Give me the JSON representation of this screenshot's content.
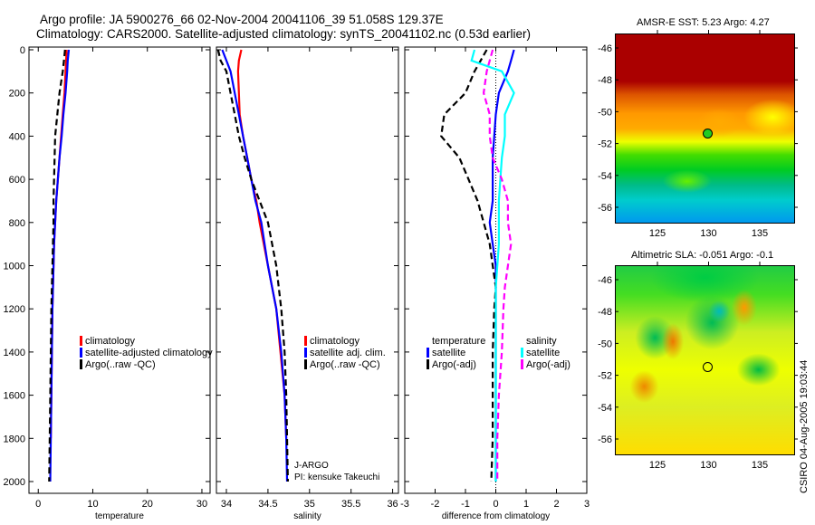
{
  "header": {
    "line1": "Argo profile: JA 5900276_66 02-Nov-2004 20041106_39 51.058S 129.37E",
    "line2": "Climatology: CARS2000. Satellite-adjusted climatology: synTS_20041102.nc (0.53d earlier)"
  },
  "colors": {
    "climatology": "#ff0000",
    "satellite": "#0000ff",
    "argo": "#000000",
    "sal_sat": "#00ffff",
    "sal_argo": "#ff00ff"
  },
  "chart_data": [
    {
      "type": "line",
      "xlabel": "temperature",
      "ylabel": "",
      "xlim": [
        -1.7,
        31.5
      ],
      "ylim": [
        2000,
        0
      ],
      "xticks": [
        "0",
        "10",
        "20",
        "30"
      ],
      "yticks": [
        "0",
        "200",
        "400",
        "600",
        "800",
        "1000",
        "1200",
        "1400",
        "1600",
        "1800",
        "2000"
      ],
      "pressure": [
        0,
        50,
        100,
        200,
        300,
        400,
        500,
        600,
        700,
        800,
        900,
        1000,
        1100,
        1200,
        1400,
        1600,
        1800,
        2000
      ],
      "series": [
        {
          "name": "climatology",
          "style": "solid",
          "color": "#ff0000",
          "values": [
            5.2,
            5.1,
            5.0,
            4.8,
            4.5,
            4.2,
            3.9,
            3.6,
            3.3,
            3.1,
            2.9,
            2.8,
            2.7,
            2.6,
            2.5,
            2.4,
            2.3,
            null
          ]
        },
        {
          "name": "satellite-adjusted climatology",
          "style": "solid",
          "color": "#0000ff",
          "values": [
            5.6,
            5.4,
            5.3,
            5.0,
            4.6,
            4.3,
            3.9,
            3.6,
            3.3,
            3.1,
            2.9,
            2.8,
            2.7,
            2.6,
            2.5,
            2.4,
            2.3,
            2.2
          ]
        },
        {
          "name": "Argo(..raw -QC)",
          "style": "dashed",
          "color": "#000000",
          "values": [
            4.9,
            4.7,
            4.5,
            3.9,
            3.5,
            3.1,
            3.0,
            2.9,
            2.8,
            2.8,
            2.7,
            2.6,
            2.5,
            2.4,
            2.3,
            2.2,
            2.1,
            2.0
          ]
        }
      ]
    },
    {
      "type": "line",
      "xlabel": "salinity",
      "xlim": [
        33.88,
        36.07
      ],
      "ylim": [
        2000,
        0
      ],
      "xticks": [
        "34",
        "34.5",
        "35",
        "35.5",
        "36"
      ],
      "pressure": [
        0,
        50,
        100,
        200,
        300,
        400,
        500,
        600,
        700,
        800,
        900,
        1000,
        1100,
        1200,
        1400,
        1600,
        1800,
        2000
      ],
      "series": [
        {
          "name": "climatology",
          "style": "solid",
          "color": "#ff0000",
          "values": [
            34.18,
            34.15,
            34.14,
            34.15,
            34.16,
            34.2,
            34.25,
            34.3,
            34.36,
            34.4,
            34.45,
            34.5,
            34.55,
            34.6,
            34.65,
            34.7,
            34.72,
            null
          ]
        },
        {
          "name": "satellite adj. clim.",
          "style": "solid",
          "color": "#0000ff",
          "values": [
            33.95,
            34.0,
            34.05,
            34.1,
            34.15,
            34.2,
            34.25,
            34.3,
            34.35,
            34.42,
            34.46,
            34.5,
            34.55,
            34.6,
            34.66,
            34.7,
            34.72,
            34.73
          ]
        },
        {
          "name": "Argo(..raw -QC)",
          "style": "dashed",
          "color": "#000000",
          "values": [
            33.9,
            33.93,
            34.0,
            34.05,
            34.1,
            34.15,
            34.22,
            34.3,
            34.4,
            34.5,
            34.55,
            34.6,
            34.63,
            34.66,
            34.7,
            34.72,
            34.73,
            34.74
          ]
        }
      ],
      "annotations": [
        "J-ARGO",
        "PI: kensuke Takeuchi"
      ]
    },
    {
      "type": "line",
      "xlabel": "difference from climatology",
      "xlim": [
        -3,
        3
      ],
      "ylim": [
        2000,
        0
      ],
      "xticks": [
        "-3",
        "-2",
        "-1",
        "0",
        "1",
        "2",
        "3"
      ],
      "pressure": [
        0,
        50,
        100,
        200,
        300,
        400,
        500,
        600,
        700,
        800,
        900,
        1000,
        1100,
        1200,
        1400,
        1600,
        1800,
        2000
      ],
      "legend_headers": [
        "temperature",
        "salinity"
      ],
      "series": [
        {
          "name": "satellite",
          "group": "temperature",
          "style": "solid",
          "color": "#0000ff",
          "values": [
            0.6,
            0.5,
            0.4,
            0.1,
            0.0,
            -0.05,
            -0.1,
            -0.1,
            -0.1,
            -0.2,
            -0.1,
            0,
            0,
            0,
            0,
            0,
            0,
            0
          ]
        },
        {
          "name": "Argo(-adj)",
          "group": "temperature",
          "style": "dashed",
          "color": "#000000",
          "values": [
            -0.3,
            -0.5,
            -0.7,
            -1.0,
            -1.7,
            -1.8,
            -1.2,
            -0.9,
            -0.6,
            -0.4,
            -0.2,
            -0.1,
            0,
            -0.05,
            -0.1,
            -0.1,
            -0.1,
            -0.15
          ]
        },
        {
          "name": "satellite",
          "group": "salinity",
          "style": "solid",
          "color": "#00ffff",
          "values": [
            -0.7,
            -0.8,
            0.2,
            0.6,
            0.3,
            0.3,
            0.2,
            0.15,
            0.1,
            0.1,
            0.1,
            0.05,
            0,
            0,
            0,
            0,
            0,
            0
          ]
        },
        {
          "name": "Argo(-adj)",
          "group": "salinity",
          "style": "dashed",
          "color": "#ff00ff",
          "values": [
            -0.1,
            -0.2,
            -0.3,
            -0.4,
            -0.2,
            -0.2,
            -0.1,
            0.2,
            0.4,
            0.4,
            0.5,
            0.4,
            0.3,
            0.25,
            0.2,
            0.1,
            0.05,
            0.05
          ]
        }
      ]
    }
  ],
  "maps": [
    {
      "title": "AMSR-E SST: 5.23 Argo: 4.27",
      "yticks": [
        "-46",
        "-48",
        "-50",
        "-52",
        "-54",
        "-56"
      ],
      "xticks": [
        "125",
        "130",
        "135"
      ]
    },
    {
      "title": "Altimetric SLA: -0.051 Argo: -0.1",
      "yticks": [
        "-46",
        "-48",
        "-50",
        "-52",
        "-54",
        "-56"
      ],
      "xticks": [
        "125",
        "130",
        "135"
      ]
    }
  ],
  "credit": "CSIRO 04-Aug-2005 19:03:44"
}
